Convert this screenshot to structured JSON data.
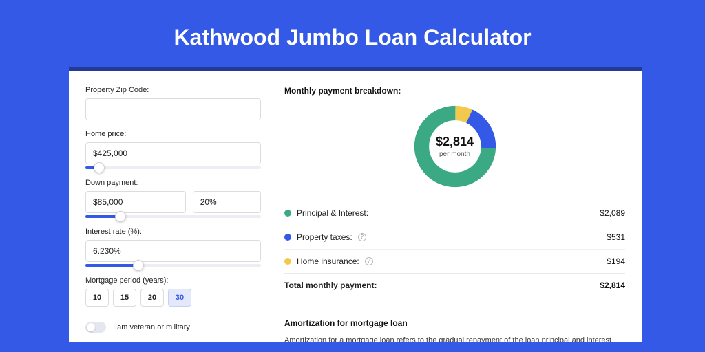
{
  "page": {
    "title": "Kathwood Jumbo Loan Calculator"
  },
  "colors": {
    "bg": "#3459e6",
    "accent": "#3459e6",
    "card_border_top": "#223b99",
    "principal": "#3aa984",
    "taxes": "#3459e6",
    "insurance": "#f2c94c"
  },
  "form": {
    "zip": {
      "label": "Property Zip Code:",
      "value": ""
    },
    "price": {
      "label": "Home price:",
      "value": "$425,000",
      "slider_pct": 8
    },
    "down": {
      "label": "Down payment:",
      "amount": "$85,000",
      "percent": "20%",
      "slider_pct": 20
    },
    "rate": {
      "label": "Interest rate (%):",
      "value": "6.230%",
      "slider_pct": 30
    },
    "period": {
      "label": "Mortgage period (years):",
      "options": [
        "10",
        "15",
        "20",
        "30"
      ],
      "selected": "30"
    },
    "veteran": {
      "label": "I am veteran or military",
      "on": false
    }
  },
  "breakdown": {
    "heading": "Monthly payment breakdown:",
    "total_amount": "$2,814",
    "per_month": "per month",
    "rows": [
      {
        "key": "principal",
        "label": "Principal & Interest:",
        "value": "$2,089",
        "color": "#3aa984",
        "info": false,
        "share": 0.742
      },
      {
        "key": "taxes",
        "label": "Property taxes:",
        "value": "$531",
        "color": "#3459e6",
        "info": true,
        "share": 0.189
      },
      {
        "key": "insurance",
        "label": "Home insurance:",
        "value": "$194",
        "color": "#f2c94c",
        "info": true,
        "share": 0.069
      }
    ],
    "total_row": {
      "label": "Total monthly payment:",
      "value": "$2,814"
    }
  },
  "amortization": {
    "title": "Amortization for mortgage loan",
    "text": "Amortization for a mortgage loan refers to the gradual repayment of the loan principal and interest over a specified"
  }
}
